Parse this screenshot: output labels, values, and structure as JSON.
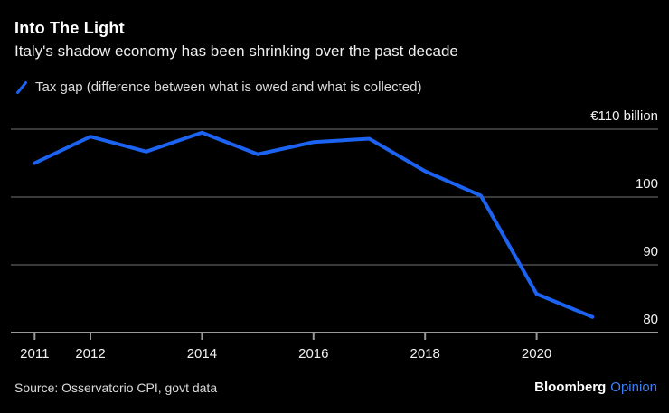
{
  "header": {
    "title": "Into The Light",
    "subtitle": "Italy's shadow economy has been shrinking over the past decade"
  },
  "legend": {
    "label": "Tax gap (difference between what is owed and what is collected)"
  },
  "footer": {
    "source": "Source: Osservatorio CPI, govt data",
    "brand": "Bloomberg",
    "brand_suffix": "Opinion"
  },
  "colors": {
    "background": "#000000",
    "line": "#1b63f0",
    "opinion_blue": "#3c80f6",
    "gridline": "#4d4d4d",
    "axis": "#999999",
    "text_primary": "#ffffff",
    "text_secondary": "#dcdcdc"
  },
  "chart_data": {
    "type": "line",
    "title": "Into The Light",
    "subtitle": "Italy's shadow economy has been shrinking over the past decade",
    "unit": "€ billion",
    "grid": "horizontal",
    "legend_position": "top-left",
    "ylim": [
      80,
      112
    ],
    "series": [
      {
        "name": "Tax gap (difference between what is owed and what is collected)",
        "x": [
          2011,
          2012,
          2013,
          2014,
          2015,
          2016,
          2017,
          2018,
          2019,
          2020,
          2021
        ],
        "values": [
          105.0,
          108.9,
          106.7,
          109.5,
          106.3,
          108.1,
          108.6,
          103.8,
          100.2,
          85.7,
          82.3
        ]
      }
    ],
    "y_ticks": [
      {
        "value": 110,
        "label": "€110 billion"
      },
      {
        "value": 100,
        "label": "100"
      },
      {
        "value": 90,
        "label": "90"
      },
      {
        "value": 80,
        "label": "80"
      }
    ],
    "x_ticks": [
      {
        "value": 2011,
        "label": "2011"
      },
      {
        "value": 2012,
        "label": "2012"
      },
      {
        "value": 2014,
        "label": "2014"
      },
      {
        "value": 2016,
        "label": "2016"
      },
      {
        "value": 2018,
        "label": "2018"
      },
      {
        "value": 2020,
        "label": "2020"
      }
    ]
  }
}
